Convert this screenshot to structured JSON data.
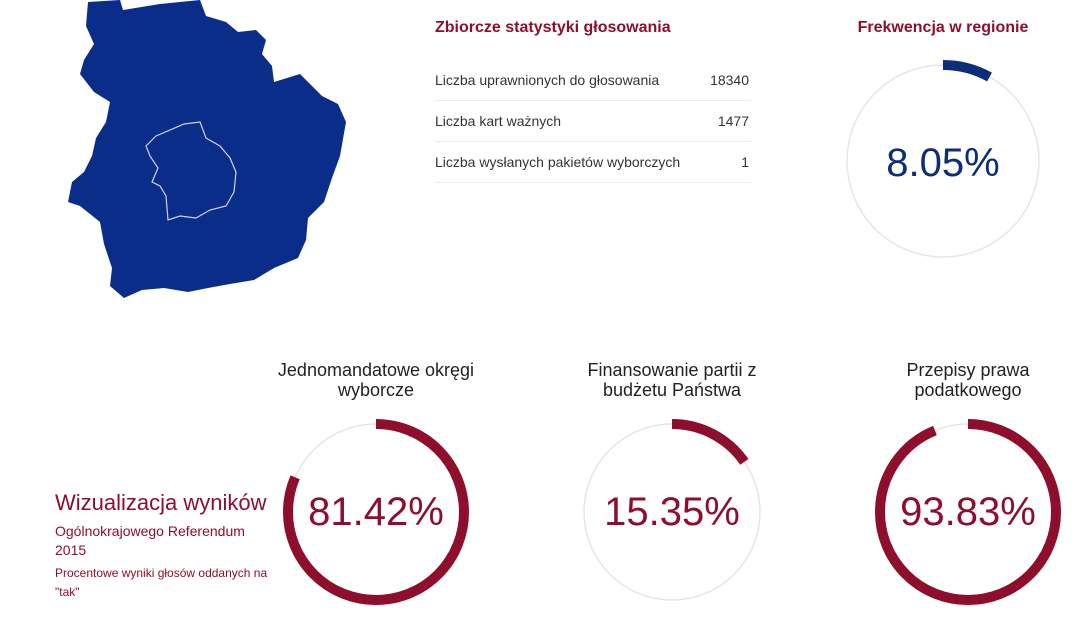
{
  "colors": {
    "accent": "#8f0e2e",
    "turnout": "#0b2d7a",
    "map_fill": "#0b2d8a",
    "ring_track": "#e6e6e6"
  },
  "map": {
    "icon": "region-map"
  },
  "stats": {
    "title": "Zbiorcze statystyki głosowania",
    "rows": [
      {
        "label": "Liczba uprawnionych do głosowania",
        "value": "18340"
      },
      {
        "label": "Liczba kart ważnych",
        "value": "1477"
      },
      {
        "label": "Liczba wysłanych pakietów wyborczych",
        "value": "1"
      }
    ]
  },
  "turnout": {
    "title": "Frekwencja w regionie",
    "value": "8.05%",
    "fraction": 0.0805
  },
  "visualization": {
    "title": "Wizualizacja wyników",
    "subtitle": "Ogólnokrajowego Referendum 2015",
    "description": "Procentowe wyniki głosów oddanych na \"tak\""
  },
  "results": [
    {
      "title": "Jednomandatowe okręgi wyborcze",
      "value": "81.42%",
      "fraction": 0.8142
    },
    {
      "title": "Finansowanie partii z budżetu Państwa",
      "value": "15.35%",
      "fraction": 0.1535
    },
    {
      "title": "Przepisy prawa podatkowego",
      "value": "93.83%",
      "fraction": 0.9383
    }
  ]
}
